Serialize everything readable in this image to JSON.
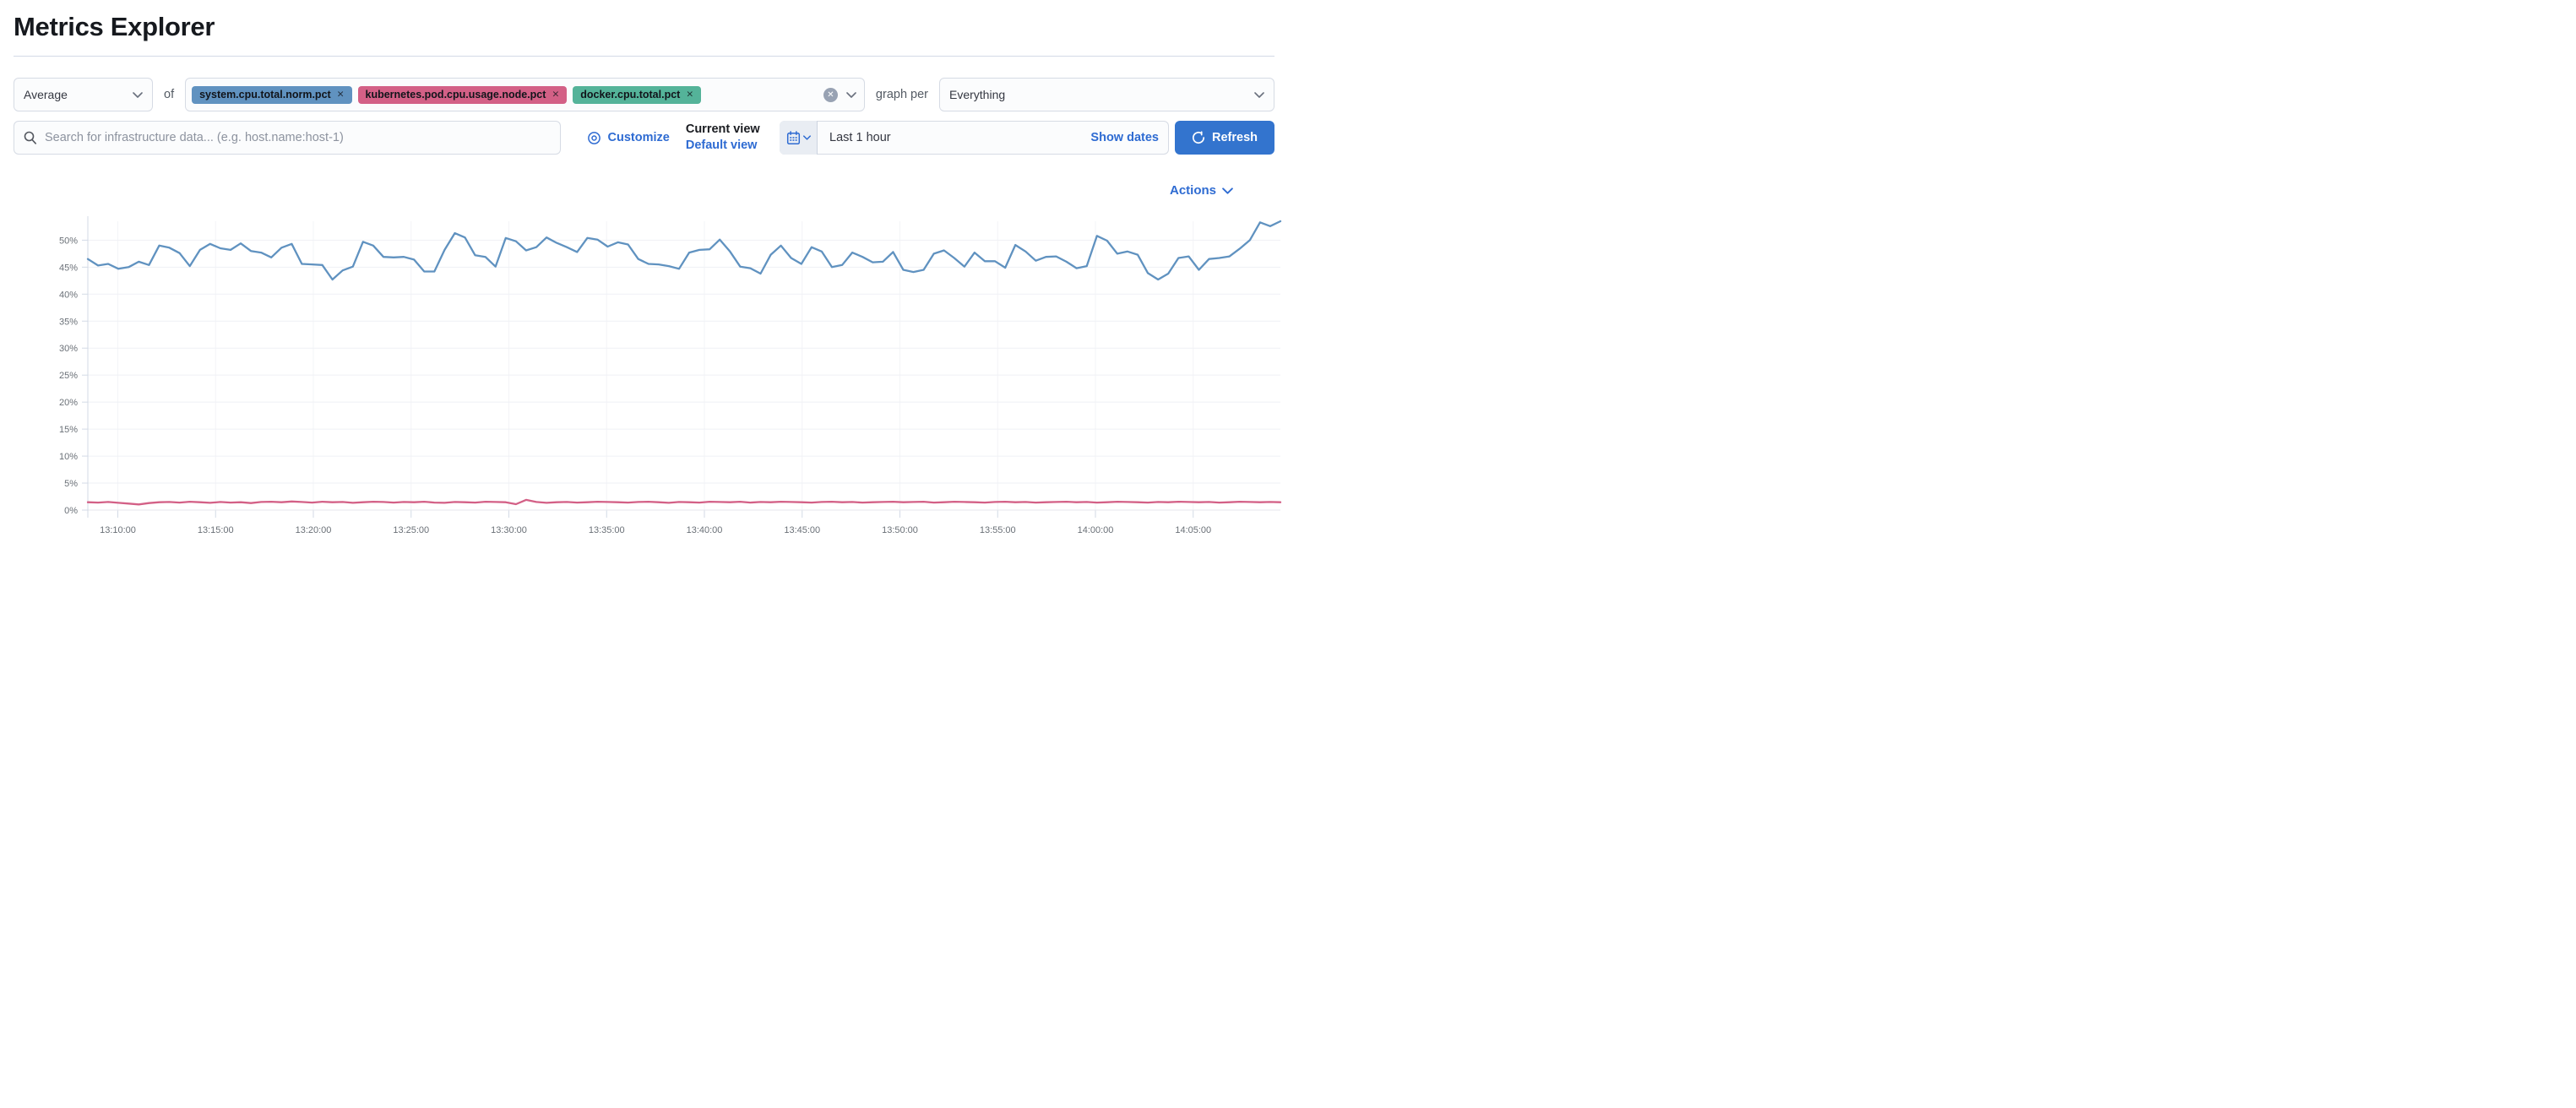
{
  "page": {
    "title": "Metrics Explorer"
  },
  "toolbar": {
    "aggregation_value": "Average",
    "of_label": "of",
    "pills": [
      {
        "label": "system.cpu.total.norm.pct",
        "color": "#6092C0"
      },
      {
        "label": "kubernetes.pod.cpu.usage.node.pct",
        "color": "#D36086"
      },
      {
        "label": "docker.cpu.total.pct",
        "color": "#54B399"
      }
    ],
    "clear_icon": "x-in-circle",
    "graph_per_label": "graph per",
    "group_by_value": "Everything"
  },
  "search": {
    "placeholder": "Search for infrastructure data... (e.g. host.name:host-1)"
  },
  "controls": {
    "customize_label": "Customize",
    "current_view_label": "Current view",
    "default_view_label": "Default view",
    "time_range_value": "Last 1 hour",
    "show_dates_label": "Show dates",
    "refresh_label": "Refresh",
    "actions_label": "Actions"
  },
  "colors": {
    "link_blue": "#2e6bd2",
    "primary_button": "#3374ce",
    "grid": "#eff1f5",
    "axis": "#d3dae6",
    "tick_text": "#6a7077"
  },
  "chart_data": {
    "type": "line",
    "unit": "%",
    "grid": true,
    "legend": "none",
    "ylim": [
      0,
      53.5
    ],
    "y_tick_step": 5,
    "y_ticks": [
      "0%",
      "5%",
      "10%",
      "15%",
      "20%",
      "25%",
      "30%",
      "35%",
      "40%",
      "45%",
      "50%"
    ],
    "x_ticks": [
      "13:10:00",
      "13:15:00",
      "13:20:00",
      "13:25:00",
      "13:30:00",
      "13:35:00",
      "13:40:00",
      "13:45:00",
      "13:50:00",
      "13:55:00",
      "14:00:00",
      "14:05:00"
    ],
    "series": [
      {
        "name": "system.cpu.total.norm.pct",
        "color": "#6092C0",
        "values": [
          46.5,
          45.3,
          45.6,
          44.7,
          45.0,
          46.0,
          45.4,
          49.0,
          48.6,
          47.6,
          45.2,
          48.2,
          49.3,
          48.5,
          48.2,
          49.4,
          48.0,
          47.7,
          46.8,
          48.6,
          49.3,
          45.6,
          45.5,
          45.4,
          42.7,
          44.4,
          45.1,
          49.7,
          49.0,
          46.9,
          46.8,
          46.9,
          46.4,
          44.2,
          44.2,
          48.2,
          51.3,
          50.5,
          47.2,
          46.9,
          45.1,
          50.4,
          49.8,
          48.1,
          48.7,
          50.5,
          49.5,
          48.7,
          47.8,
          50.4,
          50.1,
          48.8,
          49.6,
          49.2,
          46.5,
          45.6,
          45.5,
          45.2,
          44.7,
          47.7,
          48.2,
          48.3,
          50.1,
          47.9,
          45.1,
          44.8,
          43.8,
          47.3,
          49.0,
          46.7,
          45.6,
          48.7,
          47.9,
          45.0,
          45.4,
          47.7,
          46.9,
          45.9,
          46.0,
          47.8,
          44.5,
          44.1,
          44.5,
          47.5,
          48.1,
          46.7,
          45.1,
          47.7,
          46.1,
          46.1,
          44.9,
          49.1,
          47.9,
          46.2,
          46.9,
          47.0,
          46.0,
          44.8,
          45.2,
          50.8,
          49.9,
          47.5,
          47.9,
          47.3,
          43.9,
          42.7,
          43.8,
          46.7,
          47.0,
          44.5,
          46.5,
          46.7,
          47.0,
          48.4,
          50.0,
          53.3,
          52.6,
          53.5
        ]
      },
      {
        "name": "kubernetes.pod.cpu.usage.node.pct",
        "color": "#D36086",
        "values": [
          1.45,
          1.4,
          1.5,
          1.35,
          1.2,
          1.05,
          1.3,
          1.45,
          1.5,
          1.4,
          1.55,
          1.45,
          1.35,
          1.5,
          1.4,
          1.45,
          1.3,
          1.5,
          1.55,
          1.45,
          1.6,
          1.5,
          1.4,
          1.55,
          1.45,
          1.5,
          1.35,
          1.45,
          1.55,
          1.5,
          1.4,
          1.5,
          1.45,
          1.55,
          1.4,
          1.35,
          1.5,
          1.45,
          1.4,
          1.55,
          1.5,
          1.45,
          1.1,
          1.9,
          1.5,
          1.35,
          1.45,
          1.5,
          1.4,
          1.45,
          1.55,
          1.5,
          1.45,
          1.4,
          1.5,
          1.55,
          1.45,
          1.35,
          1.5,
          1.45,
          1.4,
          1.55,
          1.5,
          1.45,
          1.55,
          1.4,
          1.5,
          1.45,
          1.55,
          1.5,
          1.45,
          1.4,
          1.5,
          1.55,
          1.45,
          1.5,
          1.4,
          1.45,
          1.5,
          1.55,
          1.45,
          1.5,
          1.55,
          1.4,
          1.45,
          1.55,
          1.5,
          1.45,
          1.4,
          1.5,
          1.55,
          1.45,
          1.5,
          1.4,
          1.45,
          1.5,
          1.55,
          1.45,
          1.5,
          1.4,
          1.45,
          1.55,
          1.5,
          1.45,
          1.4,
          1.5,
          1.45,
          1.55,
          1.5,
          1.45,
          1.5,
          1.4,
          1.45,
          1.55,
          1.5,
          1.45,
          1.5,
          1.45
        ]
      }
    ]
  }
}
